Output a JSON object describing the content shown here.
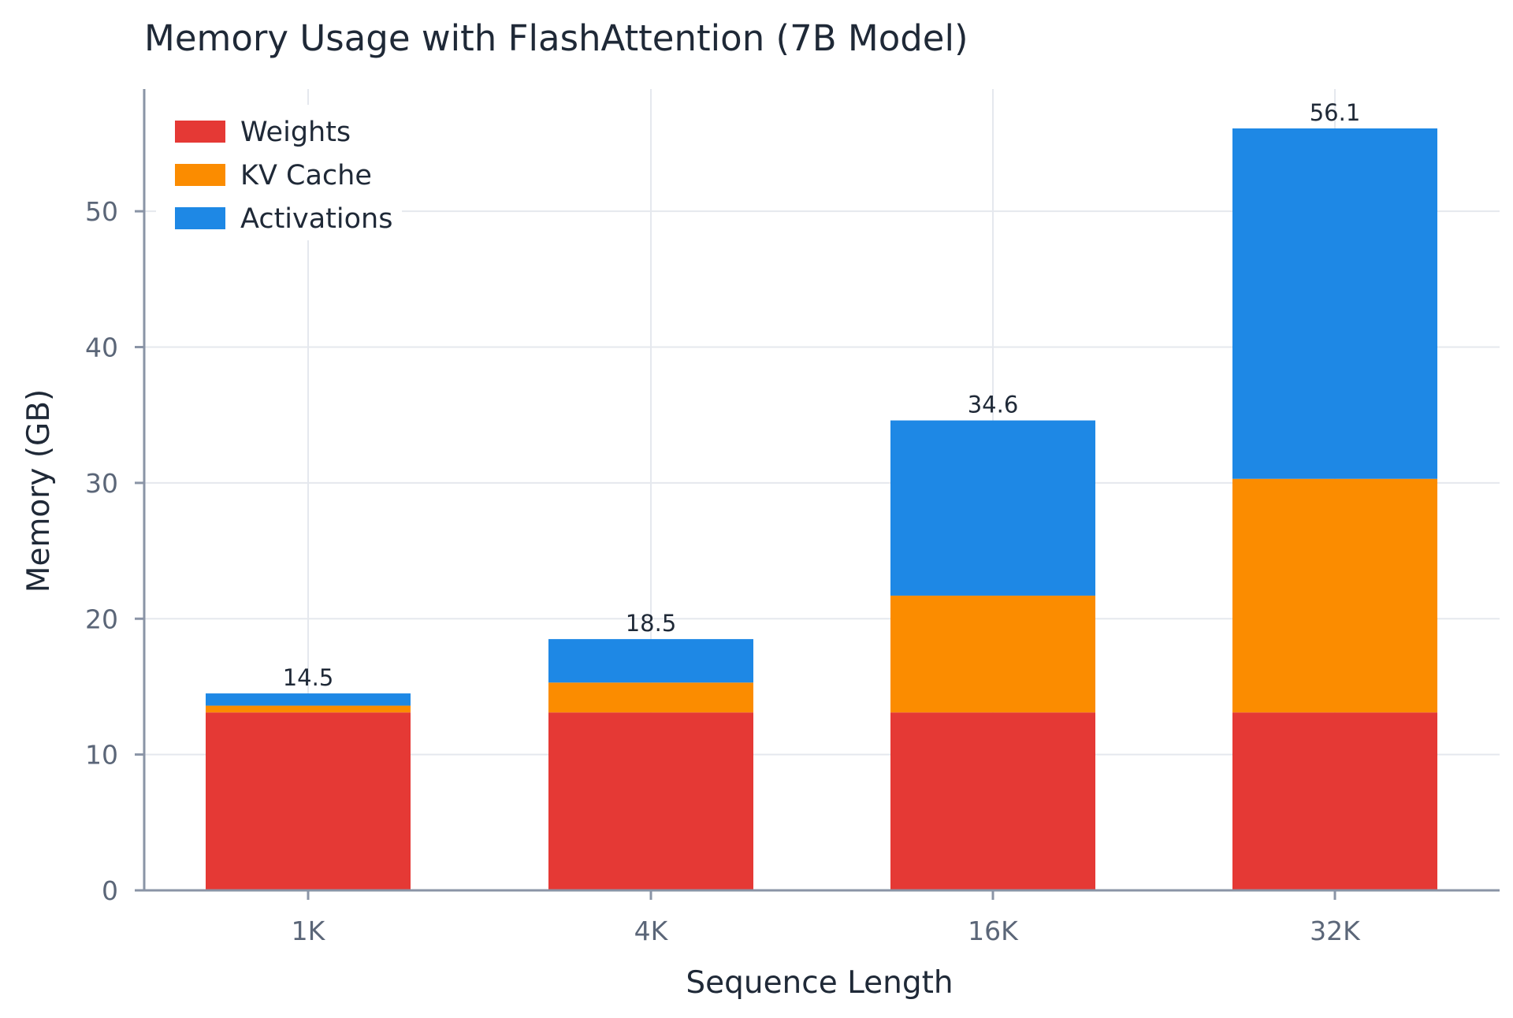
{
  "chart_data": {
    "type": "bar",
    "stacked": true,
    "title": "Memory Usage with FlashAttention (7B Model)",
    "xlabel": "Sequence Length",
    "ylabel": "Memory (GB)",
    "categories": [
      "1K",
      "4K",
      "16K",
      "32K"
    ],
    "ylim": [
      0,
      59
    ],
    "yticks": [
      0,
      10,
      20,
      30,
      40,
      50
    ],
    "grid": true,
    "legend_position": "top-left",
    "series": [
      {
        "name": "Weights",
        "color": "#e53935",
        "values": [
          13.1,
          13.1,
          13.1,
          13.1
        ]
      },
      {
        "name": "KV Cache",
        "color": "#fb8c00",
        "values": [
          0.5,
          2.2,
          8.6,
          17.2
        ]
      },
      {
        "name": "Activations",
        "color": "#1e88e5",
        "values": [
          0.9,
          3.2,
          12.9,
          25.8
        ]
      }
    ],
    "totals": [
      "14.5",
      "18.5",
      "34.6",
      "56.1"
    ]
  }
}
